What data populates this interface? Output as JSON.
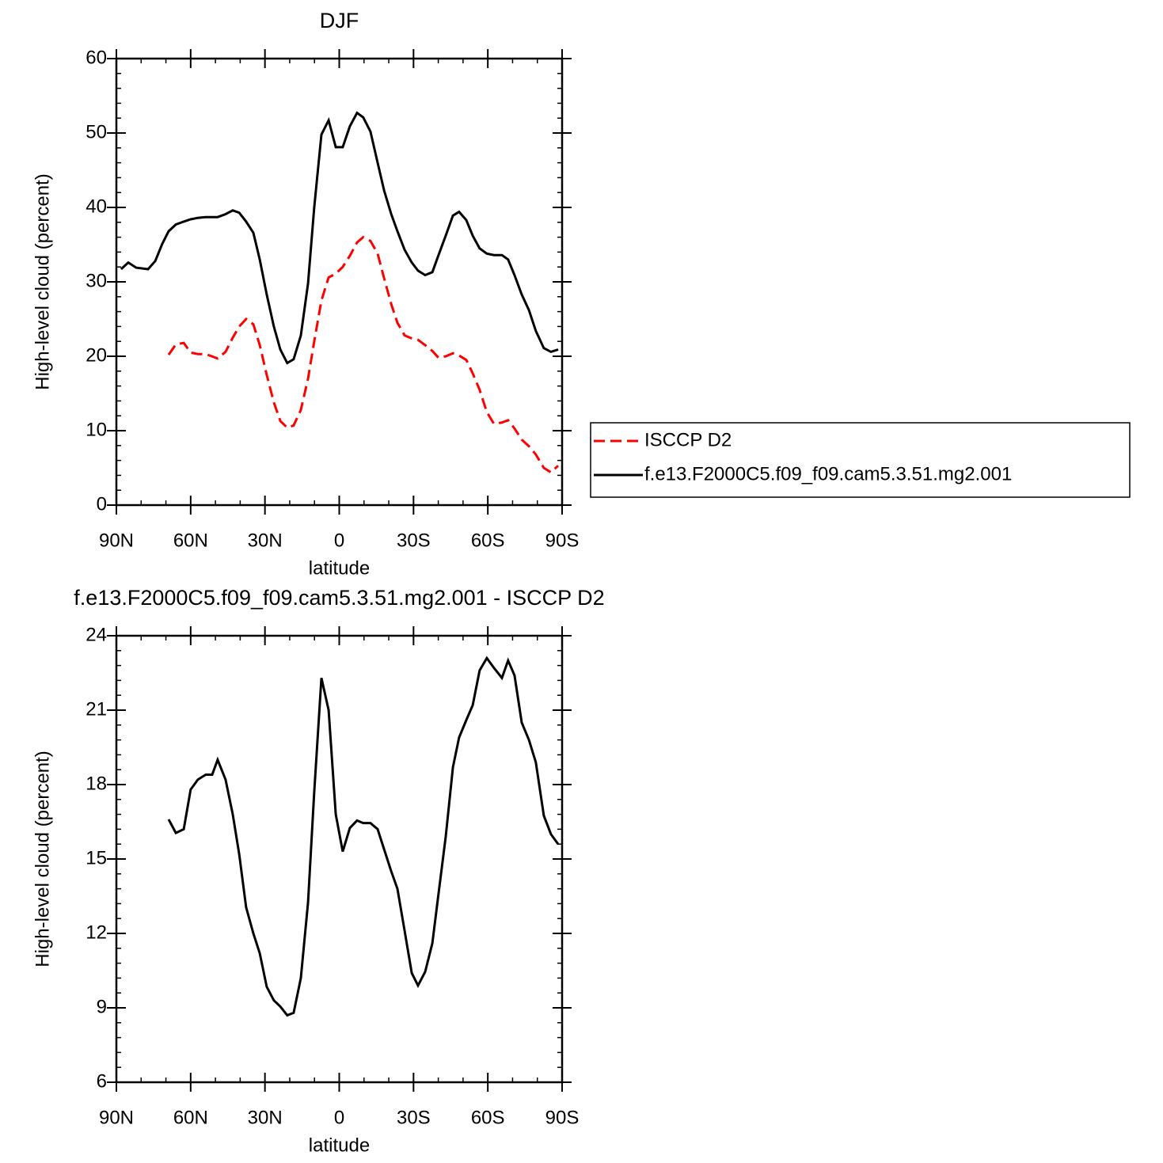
{
  "chart_data": [
    {
      "type": "line",
      "title": "DJF",
      "xlabel": "latitude",
      "ylabel": "High-level cloud (percent)",
      "x": [
        88.1,
        85.2,
        82.0,
        77.2,
        74.3,
        71.5,
        68.9,
        66.0,
        62.8,
        60.0,
        57.1,
        53.9,
        49.1,
        45.9,
        43.0,
        40.4,
        37.6,
        34.7,
        32.1,
        29.3,
        26.4,
        23.8,
        21.0,
        18.4,
        15.5,
        12.6,
        10.1,
        7.2,
        4.3,
        1.4,
        -1.4,
        -4.3,
        -7.2,
        -9.7,
        -12.6,
        -15.5,
        -18.1,
        -21.0,
        -23.5,
        -26.4,
        -29.3,
        -31.8,
        -34.7,
        -37.6,
        -40.1,
        -43.0,
        -45.9,
        -48.4,
        -51.3,
        -53.9,
        -56.7,
        -59.6,
        -62.5,
        -65.7,
        -68.2,
        -70.8,
        -73.7,
        -76.6,
        -79.4,
        -82.6,
        -85.5,
        -88.4
      ],
      "series": [
        {
          "name": "ISCCP D2",
          "color": "#ff0000",
          "linestyle": "dashed",
          "values": [
            null,
            null,
            null,
            null,
            null,
            null,
            20.2,
            21.6,
            21.8,
            20.5,
            20.3,
            20.3,
            19.7,
            20.6,
            22.5,
            24.0,
            25.0,
            24.3,
            21.5,
            17.5,
            13.8,
            11.3,
            10.4,
            10.7,
            12.8,
            17.0,
            22.0,
            27.5,
            30.6,
            31.1,
            32.0,
            33.5,
            35.3,
            36.0,
            35.5,
            33.8,
            30.5,
            27.0,
            24.5,
            22.8,
            22.4,
            22.2,
            21.5,
            20.7,
            19.8,
            20.0,
            20.4,
            20.1,
            19.5,
            17.7,
            15.5,
            12.5,
            10.9,
            11.1,
            11.4,
            10.3,
            8.8,
            7.9,
            6.8,
            5.0,
            4.4,
            5.3
          ]
        },
        {
          "name": "f.e13.F2000C5.f09_f09.cam5.3.51.mg2.001",
          "color": "#000000",
          "linestyle": "solid",
          "values": [
            31.7,
            32.6,
            31.9,
            31.7,
            32.8,
            35.1,
            36.8,
            37.7,
            38.1,
            38.4,
            38.6,
            38.7,
            38.7,
            39.1,
            39.6,
            39.3,
            38.1,
            36.6,
            33.0,
            28.3,
            24.0,
            20.9,
            19.1,
            19.6,
            22.8,
            29.8,
            40.0,
            49.8,
            51.7,
            48.1,
            48.1,
            50.9,
            52.7,
            52.1,
            50.2,
            46.0,
            42.3,
            39.1,
            36.8,
            34.3,
            32.6,
            31.5,
            30.9,
            31.3,
            33.6,
            36.2,
            38.9,
            39.4,
            38.3,
            36.2,
            34.5,
            33.8,
            33.6,
            33.6,
            33.0,
            30.9,
            28.3,
            26.2,
            23.4,
            21.1,
            20.6,
            20.9
          ]
        }
      ],
      "xlim": [
        90,
        -90
      ],
      "xticks": [
        {
          "value": 90,
          "label": "90N"
        },
        {
          "value": 60,
          "label": "60N"
        },
        {
          "value": 30,
          "label": "30N"
        },
        0,
        {
          "value": -30,
          "label": "30S"
        },
        {
          "value": -60,
          "label": "60S"
        },
        {
          "value": -90,
          "label": "90S"
        }
      ],
      "ylim": [
        0,
        60
      ],
      "yticks": [
        0,
        10,
        20,
        30,
        40,
        50,
        60
      ],
      "legend": "right"
    },
    {
      "type": "line",
      "title": "f.e13.F2000C5.f09_f09.cam5.3.51.mg2.001 - ISCCP D2",
      "xlabel": "latitude",
      "ylabel": "High-level cloud (percent)",
      "x": [
        68.9,
        66.0,
        62.8,
        60.0,
        57.1,
        53.9,
        51.3,
        49.1,
        45.9,
        43.0,
        40.4,
        37.6,
        34.7,
        32.1,
        29.3,
        26.4,
        23.8,
        21.0,
        18.4,
        15.5,
        12.6,
        10.1,
        7.2,
        4.3,
        1.4,
        -1.4,
        -4.3,
        -7.2,
        -9.7,
        -12.6,
        -15.5,
        -18.1,
        -21.0,
        -23.5,
        -26.4,
        -29.3,
        -31.8,
        -34.7,
        -37.6,
        -40.1,
        -43.0,
        -45.9,
        -48.4,
        -51.3,
        -53.9,
        -56.7,
        -59.6,
        -62.5,
        -65.7,
        -68.2,
        -70.8,
        -73.7,
        -76.6,
        -79.4,
        -82.6,
        -85.5,
        -88.4
      ],
      "color": "#000000",
      "values": [
        16.6,
        16.05,
        16.2,
        17.8,
        18.2,
        18.4,
        18.4,
        19.0,
        18.2,
        16.8,
        15.2,
        13.05,
        12.0,
        11.2,
        9.85,
        9.3,
        9.05,
        8.7,
        8.8,
        10.2,
        13.25,
        17.7,
        22.3,
        21.0,
        16.8,
        15.3,
        16.25,
        16.55,
        16.45,
        16.45,
        16.2,
        15.4,
        14.5,
        13.8,
        12.1,
        10.4,
        9.9,
        10.45,
        11.6,
        13.6,
        15.9,
        18.7,
        19.9,
        20.6,
        21.2,
        22.6,
        23.1,
        22.7,
        22.3,
        23.0,
        22.4,
        20.5,
        19.8,
        18.9,
        16.75,
        16.0,
        15.6
      ],
      "xlim": [
        90,
        -90
      ],
      "xticks": [
        {
          "value": 90,
          "label": "90N"
        },
        {
          "value": 60,
          "label": "60N"
        },
        {
          "value": 30,
          "label": "30N"
        },
        0,
        {
          "value": -30,
          "label": "30S"
        },
        {
          "value": -60,
          "label": "60S"
        },
        {
          "value": -90,
          "label": "90S"
        }
      ],
      "ylim": [
        6,
        24
      ],
      "yticks": [
        6,
        9,
        12,
        15,
        18,
        21,
        24
      ]
    }
  ]
}
